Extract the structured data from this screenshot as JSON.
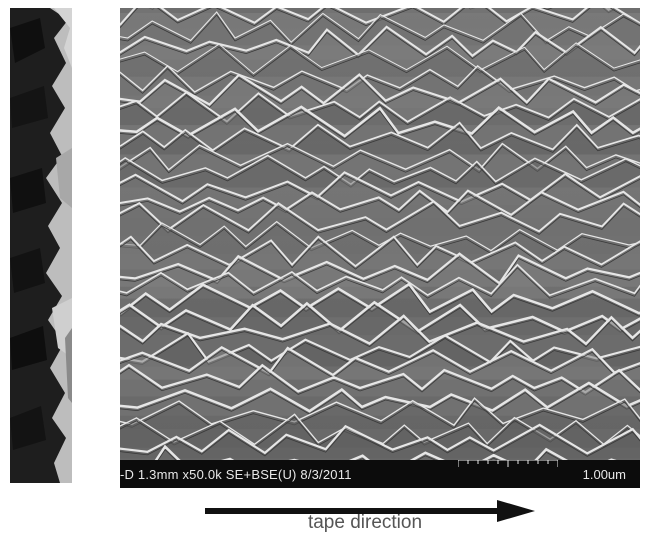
{
  "micrograph": {
    "info_text": "-D 1.3mm x50.0k SE+BSE(U) 8/3/2011",
    "scale_label": "1.00um"
  },
  "caption": {
    "tape_direction": "tape direction"
  },
  "colors": {
    "background": "#ffffff",
    "info_bar": "#0c0c0c",
    "arrow": "#111111",
    "caption_text": "#555555"
  }
}
